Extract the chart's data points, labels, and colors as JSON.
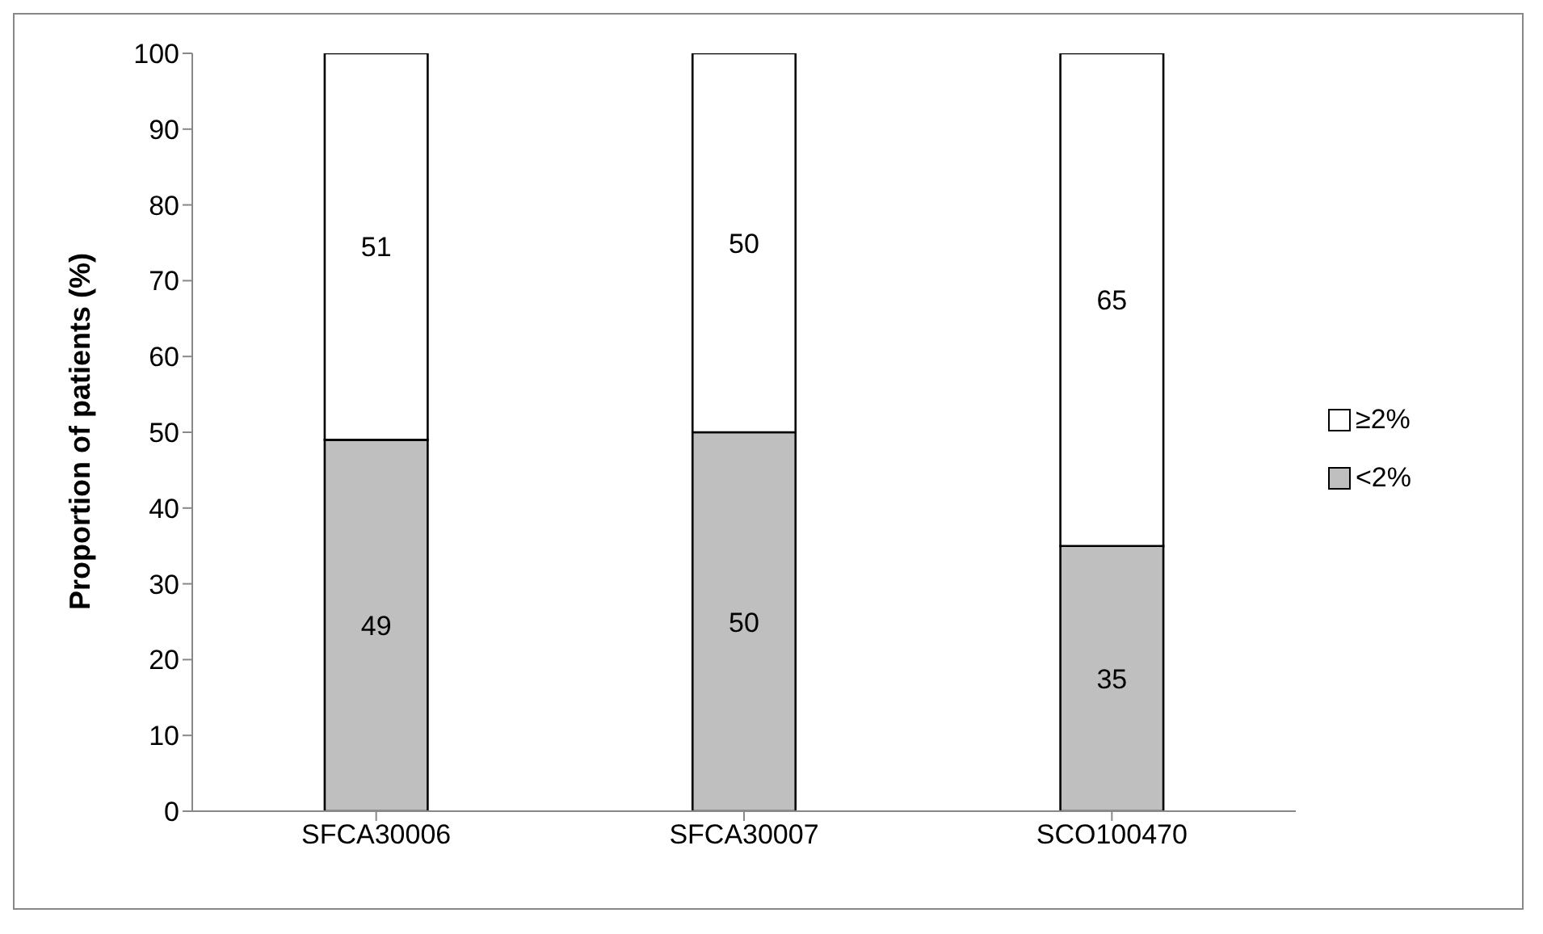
{
  "chart_data": {
    "type": "bar",
    "stacked": true,
    "ylabel": "Proportion of patients (%)",
    "categories": [
      "SFCA30006",
      "SFCA30007",
      "SCO100470"
    ],
    "series": [
      {
        "name": "<2%",
        "color": "#bfbfbf",
        "values": [
          49,
          50,
          35
        ]
      },
      {
        "name": "≥2%",
        "color": "#ffffff",
        "values": [
          51,
          50,
          65
        ]
      }
    ],
    "ylim": [
      0,
      100
    ],
    "yticks": [
      0,
      10,
      20,
      30,
      40,
      50,
      60,
      70,
      80,
      90,
      100
    ],
    "grid": false,
    "legend": "right",
    "data_labels": true
  }
}
